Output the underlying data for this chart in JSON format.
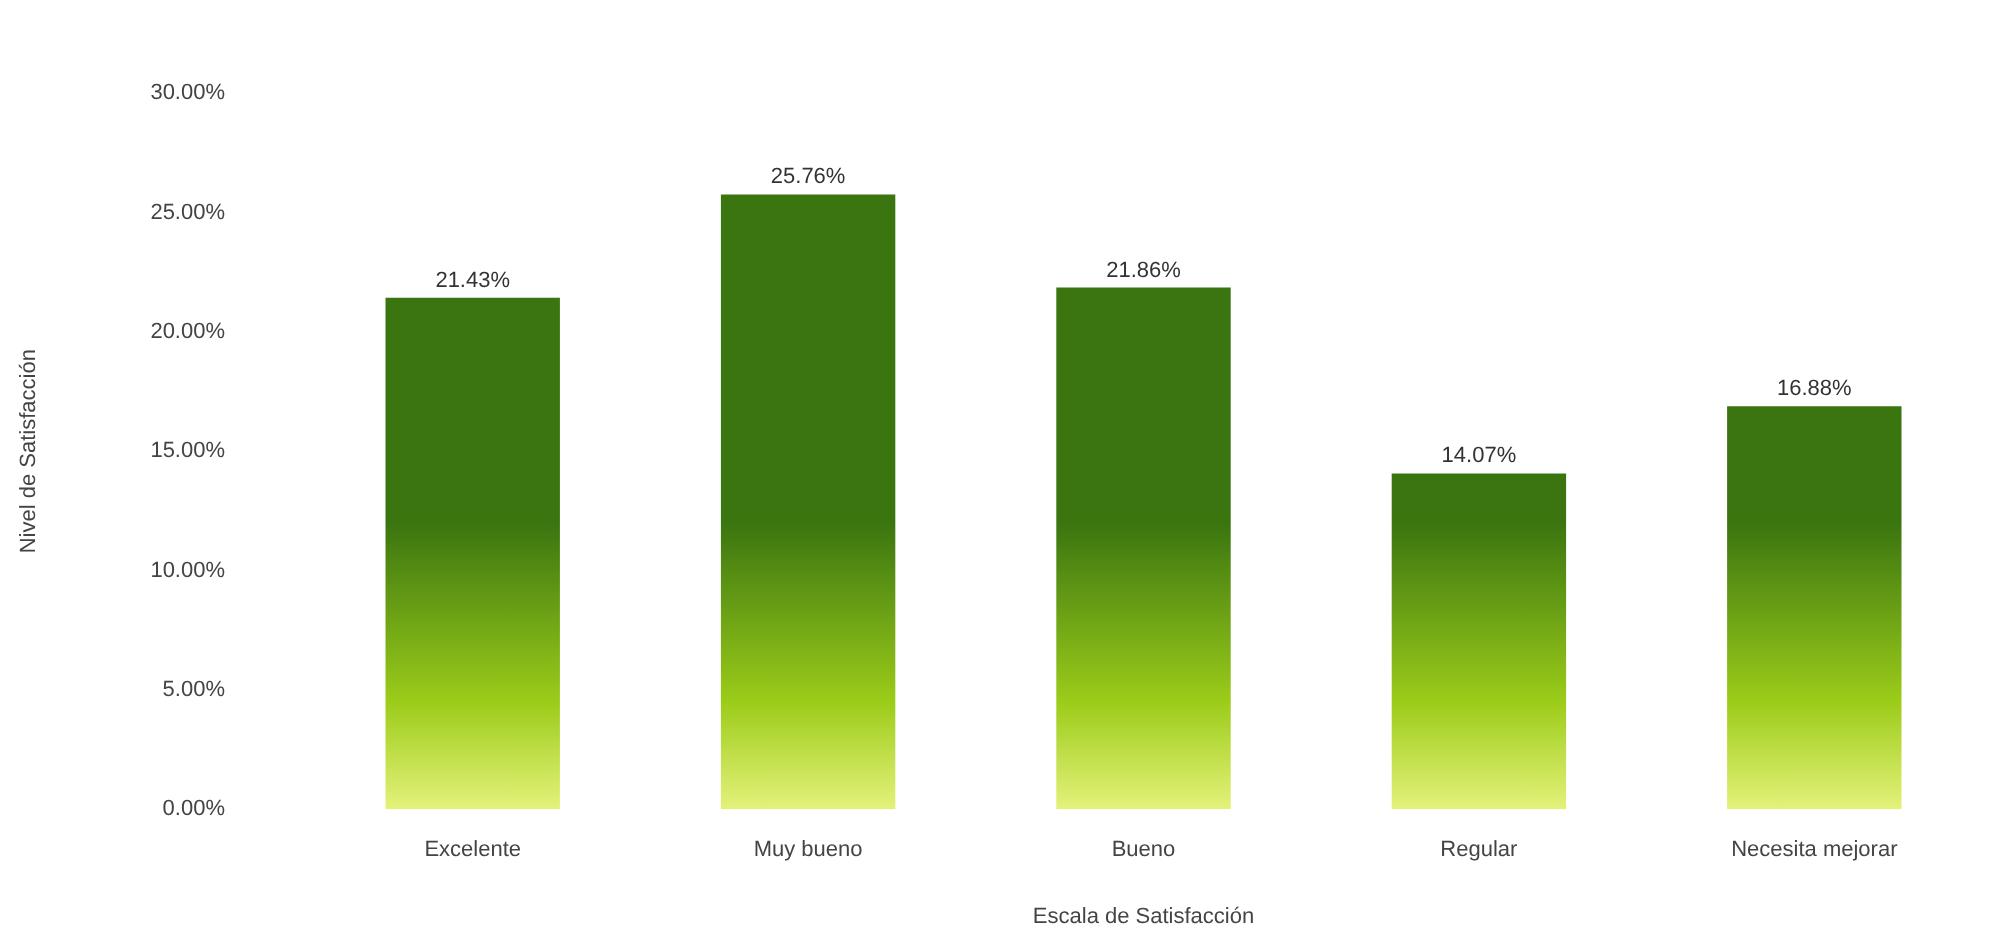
{
  "chart_data": {
    "type": "bar",
    "xlabel": "Escala de Satisfacción",
    "ylabel": "Nivel de Satisfacción",
    "categories": [
      "Excelente",
      "Muy bueno",
      "Bueno",
      "Regular",
      "Necesita mejorar"
    ],
    "values": [
      21.43,
      25.76,
      21.86,
      14.07,
      16.88
    ],
    "value_labels": [
      "21.43%",
      "25.76%",
      "21.86%",
      "14.07%",
      "16.88%"
    ],
    "color": "#3a7510",
    "ylim": [
      0,
      30
    ],
    "yticks": [
      {
        "value": 0,
        "label": "0.00%"
      },
      {
        "value": 5,
        "label": "5.00%"
      },
      {
        "value": 10,
        "label": "10.00%"
      },
      {
        "value": 15,
        "label": "15.00%"
      },
      {
        "value": 20,
        "label": "20.00%"
      },
      {
        "value": 25,
        "label": "25.00%"
      },
      {
        "value": 30,
        "label": "30.00%"
      }
    ],
    "grid": false,
    "legend": false
  }
}
